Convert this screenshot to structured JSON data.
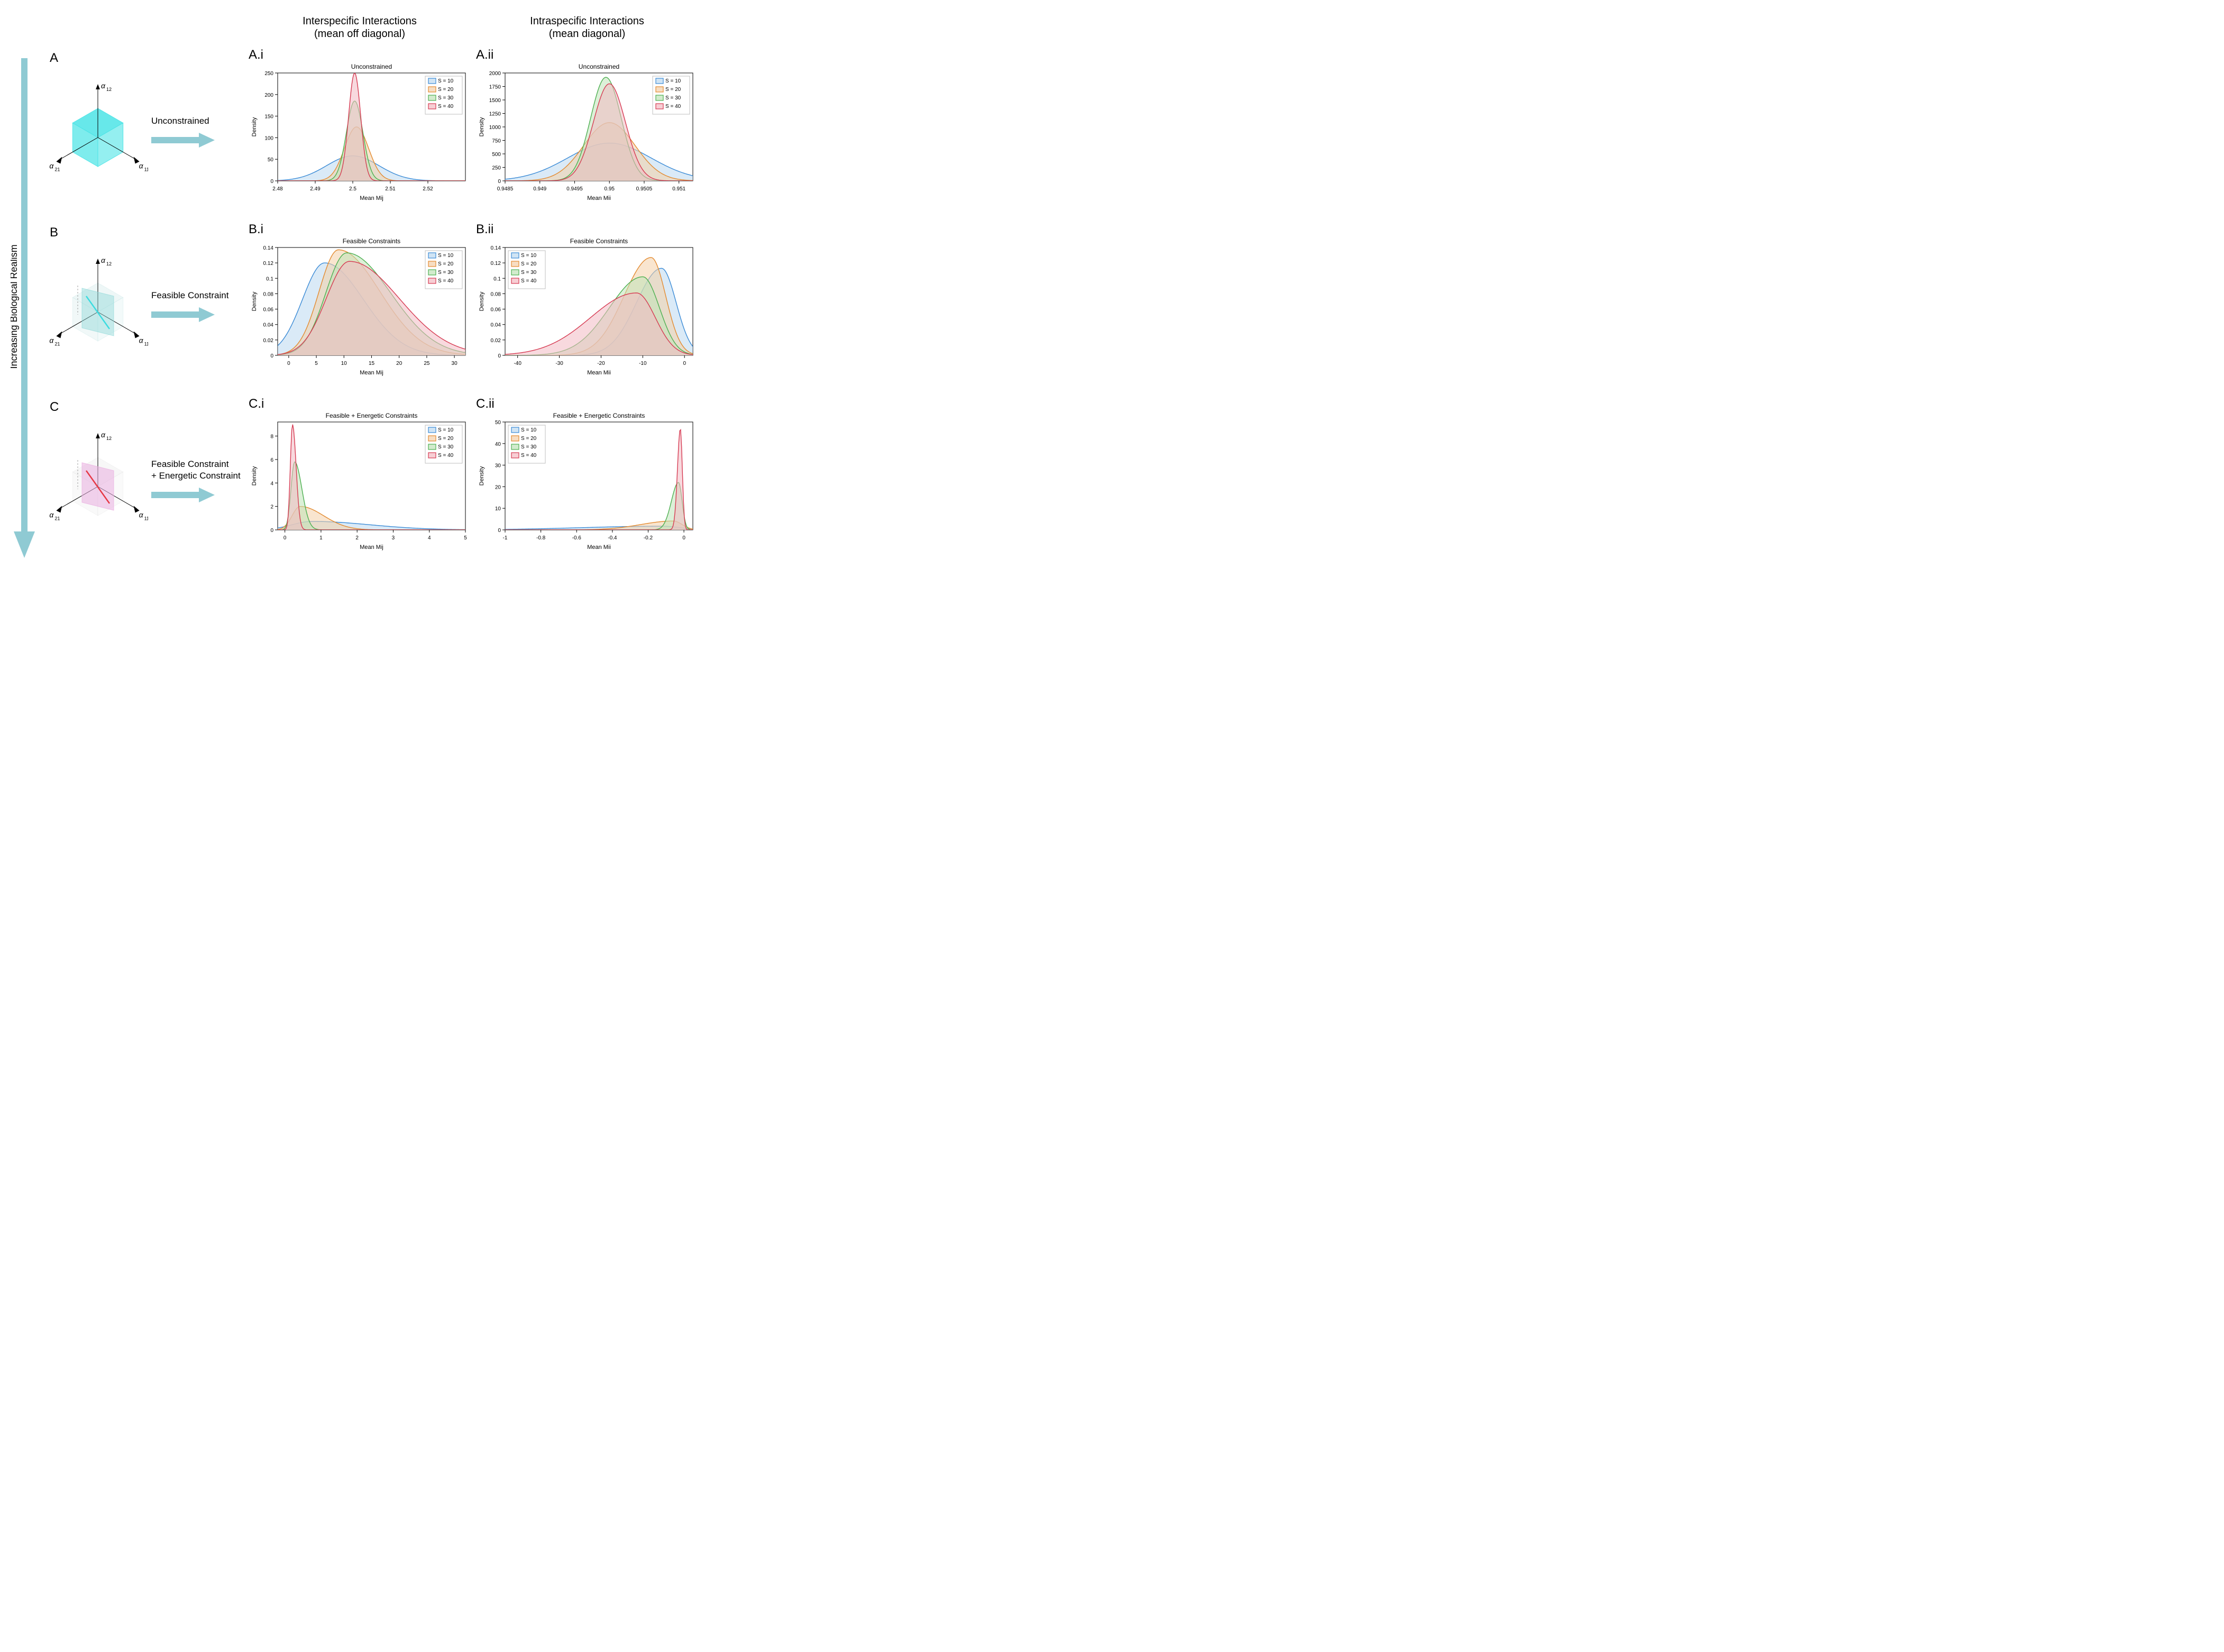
{
  "headers": {
    "col2_line1": "Interspecific Interactions",
    "col2_line2": "(mean off diagonal)",
    "col3_line1": "Intraspecific Interactions",
    "col3_line2": "(mean diagonal)"
  },
  "realism_label": "Increasing Biological Realism",
  "panel_letters": {
    "A": "A",
    "B": "B",
    "C": "C",
    "Ai": "A.i",
    "Aii": "A.ii",
    "Bi": "B.i",
    "Bii": "B.ii",
    "Ci": "C.i",
    "Cii": "C.ii"
  },
  "diagrams": {
    "axis_labels": {
      "top": "α",
      "top_sub": "12",
      "left": "α",
      "left_sub": "21",
      "right": "α",
      "right_sub": "11"
    },
    "A": {
      "caption": "Unconstrained",
      "cube_fill": "#4ce4e6",
      "cube_opacity": 0.85,
      "line_color": "#000000"
    },
    "B": {
      "caption": "Feasible Constraint",
      "cube_fill": "#cfe9e9",
      "cube_opacity": 0.35,
      "plane_fill": "#8ed8d8",
      "plane_opacity": 0.45,
      "line_color": "#3cdce0"
    },
    "C": {
      "caption_line1": "Feasible Constraint",
      "caption_line2": "+ Energetic Constraint",
      "cube_fill": "#e6e6e6",
      "cube_opacity": 0.3,
      "plane_fill": "#e9aee0",
      "plane_opacity": 0.55,
      "line_color": "#e63946"
    }
  },
  "colors": {
    "arrow": "#8fcad3",
    "arrow_head": "#8fcad3",
    "axis": "#000000",
    "grid": "#ffffff",
    "plot_border": "#000000",
    "legend_border": "#bfbfbf",
    "font": "#000000",
    "series": {
      "S10": {
        "stroke": "#3b8bd6",
        "fill": "#bcd8f0"
      },
      "S20": {
        "stroke": "#e38a2f",
        "fill": "#f4cfa8"
      },
      "S30": {
        "stroke": "#4caf50",
        "fill": "#bfe3b8"
      },
      "S40": {
        "stroke": "#d63a52",
        "fill": "#f3b9c2"
      }
    }
  },
  "legend_labels": [
    "S = 10",
    "S = 20",
    "S = 30",
    "S = 40"
  ],
  "charts": {
    "Ai": {
      "title": "Unconstrained",
      "xlabel": "Mean Mij",
      "ylabel": "Density",
      "xlim": [
        2.48,
        2.53
      ],
      "xticks": [
        2.48,
        2.49,
        2.5,
        2.51,
        2.52
      ],
      "ylim": [
        0,
        250
      ],
      "yticks": [
        0,
        50,
        100,
        150,
        200,
        250
      ],
      "title_fontsize": 12,
      "label_fontsize": 11,
      "tick_fontsize": 10,
      "series": [
        {
          "key": "S10",
          "mu": 2.5,
          "sigma": 0.007,
          "amp": 58
        },
        {
          "key": "S20",
          "mu": 2.501,
          "sigma": 0.0032,
          "amp": 125
        },
        {
          "key": "S30",
          "mu": 2.5005,
          "sigma": 0.0022,
          "amp": 185
        },
        {
          "key": "S40",
          "mu": 2.5005,
          "sigma": 0.0016,
          "amp": 250
        }
      ]
    },
    "Aii": {
      "title": "Unconstrained",
      "xlabel": "Mean Mii",
      "ylabel": "Density",
      "xlim": [
        0.9485,
        0.9512
      ],
      "xticks": [
        0.9485,
        0.949,
        0.9495,
        0.95,
        0.9505,
        0.951
      ],
      "ylim": [
        0,
        2000
      ],
      "yticks": [
        0,
        250,
        500,
        750,
        1000,
        1250,
        1500,
        1750,
        2000
      ],
      "title_fontsize": 12,
      "label_fontsize": 11,
      "tick_fontsize": 10,
      "series": [
        {
          "key": "S10",
          "mu": 0.95,
          "sigma": 0.0006,
          "amp": 700
        },
        {
          "key": "S20",
          "mu": 0.95,
          "sigma": 0.00037,
          "amp": 1080
        },
        {
          "key": "S30",
          "mu": 0.94995,
          "sigma": 0.00022,
          "amp": 1920
        },
        {
          "key": "S40",
          "mu": 0.95,
          "sigma": 0.00023,
          "amp": 1800
        }
      ]
    },
    "Bi": {
      "title": "Feasible Constraints",
      "xlabel": "Mean Mij",
      "ylabel": "Density",
      "xlim": [
        -2,
        32
      ],
      "xticks": [
        0,
        5,
        10,
        15,
        20,
        25,
        30
      ],
      "ylim": [
        0,
        0.14
      ],
      "yticks": [
        0.0,
        0.02,
        0.04,
        0.06,
        0.08,
        0.1,
        0.12,
        0.14
      ],
      "title_fontsize": 12,
      "label_fontsize": 11,
      "tick_fontsize": 10,
      "series": [
        {
          "key": "S10",
          "type": "skew",
          "mode": 6.5,
          "left": 4.0,
          "right": 7.0,
          "amp": 0.12
        },
        {
          "key": "S20",
          "type": "skew",
          "mode": 9.0,
          "left": 3.5,
          "right": 7.5,
          "amp": 0.137
        },
        {
          "key": "S30",
          "type": "skew",
          "mode": 10.5,
          "left": 3.8,
          "right": 8.0,
          "amp": 0.133
        },
        {
          "key": "S40",
          "type": "skew",
          "mode": 11.0,
          "left": 4.2,
          "right": 9.0,
          "amp": 0.122
        }
      ]
    },
    "Bii": {
      "title": "Feasible Constraints",
      "xlabel": "Mean Mii",
      "ylabel": "Density",
      "xlim": [
        -43,
        2
      ],
      "xticks": [
        -40,
        -30,
        -20,
        -10,
        0
      ],
      "ylim": [
        0,
        0.14
      ],
      "yticks": [
        0.0,
        0.02,
        0.04,
        0.06,
        0.08,
        0.1,
        0.12,
        0.14
      ],
      "title_fontsize": 12,
      "label_fontsize": 11,
      "tick_fontsize": 10,
      "legend_pos": "upper-left",
      "series": [
        {
          "key": "S10",
          "type": "skew",
          "mode": -5.5,
          "left": 6.0,
          "right": 3.5,
          "amp": 0.113
        },
        {
          "key": "S20",
          "type": "skew",
          "mode": -8.0,
          "left": 6.5,
          "right": 3.5,
          "amp": 0.127
        },
        {
          "key": "S30",
          "type": "skew",
          "mode": -10.0,
          "left": 8.0,
          "right": 4.0,
          "amp": 0.102
        },
        {
          "key": "S40",
          "type": "skew",
          "mode": -11.5,
          "left": 11.0,
          "right": 4.5,
          "amp": 0.081
        }
      ]
    },
    "Ci": {
      "title": "Feasible + Energetic Constraints",
      "xlabel": "Mean Mij",
      "ylabel": "Density",
      "xlim": [
        -0.2,
        5
      ],
      "xticks": [
        0,
        1,
        2,
        3,
        4,
        5
      ],
      "ylim": [
        0,
        9.2
      ],
      "yticks": [
        0,
        2,
        4,
        6,
        8
      ],
      "title_fontsize": 12,
      "label_fontsize": 11,
      "tick_fontsize": 10,
      "series": [
        {
          "key": "S10",
          "type": "skew",
          "mode": 0.75,
          "left": 0.55,
          "right": 1.6,
          "amp": 0.72
        },
        {
          "key": "S20",
          "type": "skew",
          "mode": 0.42,
          "left": 0.22,
          "right": 0.65,
          "amp": 2.0
        },
        {
          "key": "S30",
          "type": "skew",
          "mode": 0.27,
          "left": 0.1,
          "right": 0.2,
          "amp": 5.8
        },
        {
          "key": "S40",
          "type": "skew",
          "mode": 0.21,
          "left": 0.06,
          "right": 0.1,
          "amp": 9.0
        }
      ]
    },
    "Cii": {
      "title": "Feasible + Energetic Constraints",
      "xlabel": "Mean Mii",
      "ylabel": "Density",
      "xlim": [
        -1.0,
        0.05
      ],
      "xticks": [
        -1.0,
        -0.8,
        -0.6,
        -0.4,
        -0.2,
        0.0
      ],
      "ylim": [
        0,
        50
      ],
      "yticks": [
        0,
        10,
        20,
        30,
        40,
        50
      ],
      "title_fontsize": 12,
      "label_fontsize": 11,
      "tick_fontsize": 10,
      "legend_pos": "upper-left",
      "series": [
        {
          "key": "S10",
          "type": "skew",
          "mode": -0.12,
          "left": 0.45,
          "right": 0.1,
          "amp": 1.7
        },
        {
          "key": "S20",
          "type": "skew",
          "mode": -0.06,
          "left": 0.18,
          "right": 0.05,
          "amp": 4.1
        },
        {
          "key": "S30",
          "type": "skew",
          "mode": -0.03,
          "left": 0.04,
          "right": 0.02,
          "amp": 22.0
        },
        {
          "key": "S40",
          "type": "skew",
          "mode": -0.02,
          "left": 0.016,
          "right": 0.011,
          "amp": 47.0
        }
      ]
    }
  }
}
